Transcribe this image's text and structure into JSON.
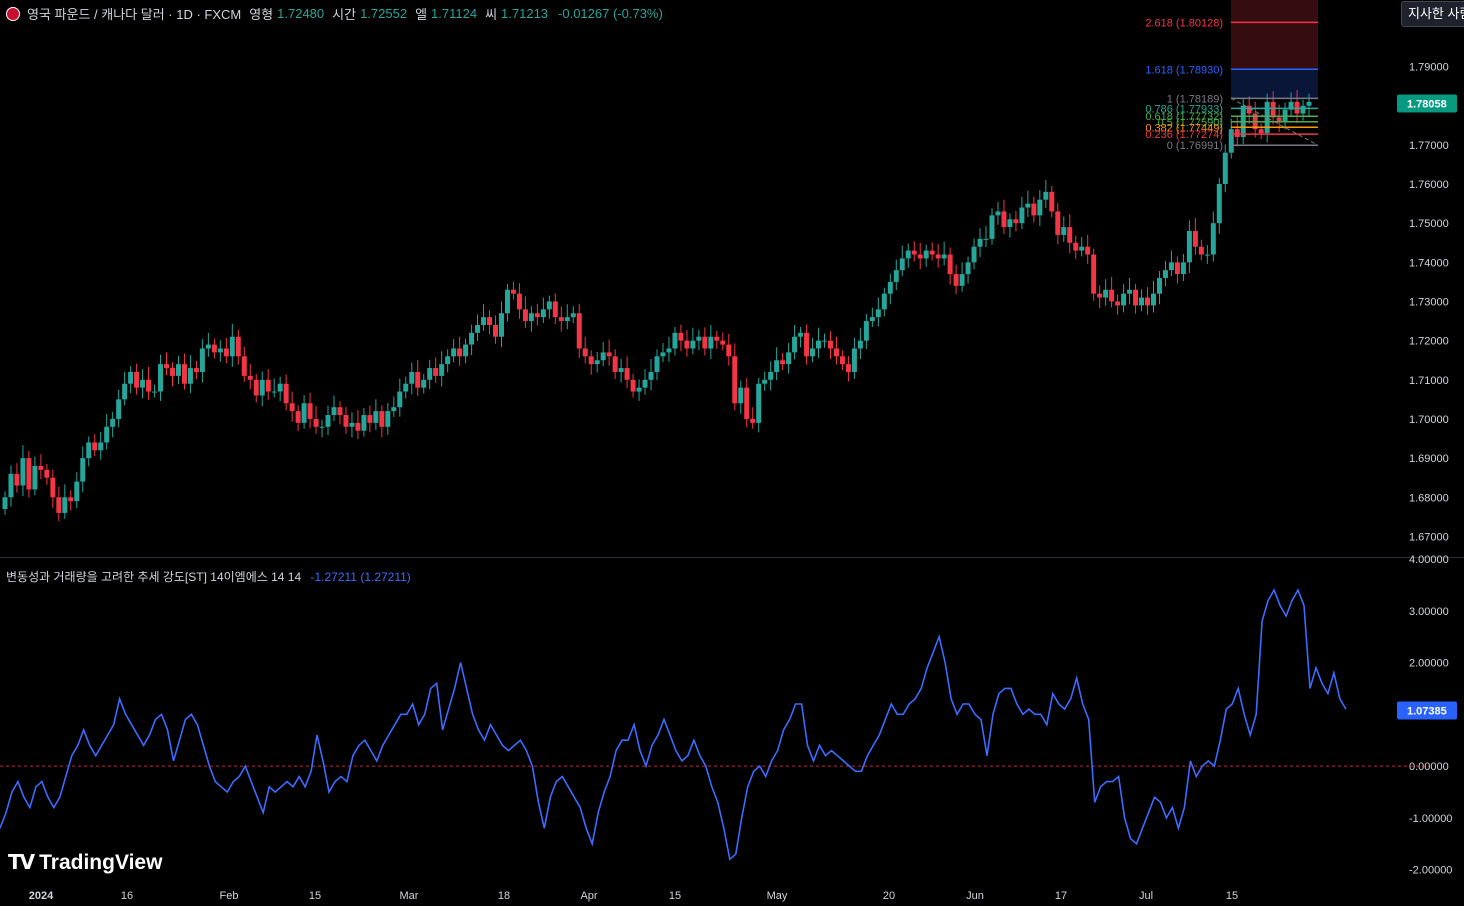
{
  "header": {
    "symbol": "영국 파운드 / 캐나다 달러 · 1D · FXCM",
    "open_label": "영형",
    "open": "1.72480",
    "high_label": "시간",
    "high": "1.72552",
    "low_label": "엘",
    "low": "1.71124",
    "close_label": "씨",
    "close": "1.71213",
    "change": "-0.01267 (-0.73%)"
  },
  "indicator": {
    "title": "변동성과 거래량을 고려한 추세 강도[ST] 14이엠에스 14 14",
    "value_text": "-1.27211 (1.27211)"
  },
  "top_button": "지사한 사람",
  "logo": "TradingView",
  "chart_data": [
    {
      "type": "candlestick",
      "price_ylim": [
        1.665,
        1.807
      ],
      "y_ticks": [
        "1.67000",
        "1.68000",
        "1.69000",
        "1.70000",
        "1.71000",
        "1.72000",
        "1.73000",
        "1.74000",
        "1.75000",
        "1.76000",
        "1.77000",
        "1.78000",
        "1.79000"
      ],
      "last_price": "1.78058",
      "x_ticks": [
        "2024",
        "16",
        "Feb",
        "15",
        "Mar",
        "18",
        "Apr",
        "15",
        "May",
        "20",
        "Jun",
        "17",
        "Jul",
        "15"
      ],
      "closes": [
        1.68,
        1.686,
        1.683,
        1.69,
        1.682,
        1.688,
        1.687,
        1.685,
        1.68,
        1.676,
        1.68,
        1.679,
        1.684,
        1.69,
        1.694,
        1.692,
        1.694,
        1.698,
        1.7,
        1.705,
        1.709,
        1.712,
        1.708,
        1.71,
        1.707,
        1.707,
        1.714,
        1.713,
        1.711,
        1.714,
        1.709,
        1.713,
        1.712,
        1.718,
        1.719,
        1.717,
        1.718,
        1.716,
        1.721,
        1.716,
        1.711,
        1.71,
        1.706,
        1.71,
        1.707,
        1.707,
        1.709,
        1.704,
        1.702,
        1.699,
        1.704,
        1.7,
        1.698,
        1.698,
        1.701,
        1.703,
        1.701,
        1.698,
        1.699,
        1.697,
        1.701,
        1.699,
        1.702,
        1.698,
        1.702,
        1.703,
        1.707,
        1.709,
        1.712,
        1.708,
        1.71,
        1.713,
        1.711,
        1.714,
        1.716,
        1.718,
        1.716,
        1.719,
        1.722,
        1.724,
        1.726,
        1.724,
        1.721,
        1.727,
        1.733,
        1.732,
        1.728,
        1.725,
        1.727,
        1.726,
        1.728,
        1.73,
        1.726,
        1.725,
        1.726,
        1.727,
        1.718,
        1.716,
        1.714,
        1.715,
        1.717,
        1.716,
        1.712,
        1.713,
        1.71,
        1.707,
        1.708,
        1.71,
        1.712,
        1.716,
        1.717,
        1.718,
        1.722,
        1.72,
        1.718,
        1.72,
        1.721,
        1.718,
        1.721,
        1.72,
        1.719,
        1.716,
        1.704,
        1.708,
        1.7,
        1.699,
        1.709,
        1.71,
        1.712,
        1.715,
        1.714,
        1.717,
        1.721,
        1.722,
        1.716,
        1.718,
        1.72,
        1.72,
        1.718,
        1.716,
        1.714,
        1.712,
        1.718,
        1.72,
        1.725,
        1.726,
        1.728,
        1.732,
        1.735,
        1.738,
        1.741,
        1.743,
        1.742,
        1.741,
        1.743,
        1.742,
        1.741,
        1.742,
        1.737,
        1.734,
        1.737,
        1.74,
        1.744,
        1.746,
        1.746,
        1.752,
        1.753,
        1.749,
        1.751,
        1.75,
        1.754,
        1.755,
        1.752,
        1.756,
        1.758,
        1.753,
        1.747,
        1.749,
        1.745,
        1.743,
        1.744,
        1.742,
        1.732,
        1.731,
        1.733,
        1.73,
        1.729,
        1.732,
        1.733,
        1.729,
        1.731,
        1.729,
        1.732,
        1.736,
        1.738,
        1.74,
        1.737,
        1.74,
        1.748,
        1.744,
        1.742,
        1.742,
        1.75,
        1.76,
        1.768,
        1.774,
        1.772,
        1.78,
        1.778,
        1.774,
        1.773,
        1.781,
        1.777,
        1.776,
        1.779,
        1.781,
        1.778,
        1.78,
        1.781
      ]
    },
    {
      "type": "line",
      "ylim": [
        -2.2,
        4.0
      ],
      "y_ticks": [
        "4.00000",
        "3.00000",
        "2.00000",
        "1.00000",
        "0.00000",
        "-1.00000",
        "-2.00000"
      ],
      "last_value": "1.07385",
      "zero_line": 0,
      "values": [
        -1.2,
        -0.9,
        -0.5,
        -0.3,
        -0.6,
        -0.8,
        -0.4,
        -0.3,
        -0.6,
        -0.8,
        -0.6,
        -0.2,
        0.2,
        0.4,
        0.7,
        0.4,
        0.2,
        0.4,
        0.6,
        0.8,
        1.3,
        1.0,
        0.8,
        0.6,
        0.4,
        0.6,
        0.9,
        1.0,
        0.7,
        0.1,
        0.5,
        0.9,
        1.0,
        0.8,
        0.4,
        0.0,
        -0.3,
        -0.4,
        -0.5,
        -0.3,
        -0.2,
        0.0,
        -0.3,
        -0.6,
        -0.9,
        -0.4,
        -0.5,
        -0.4,
        -0.3,
        -0.4,
        -0.2,
        -0.4,
        -0.1,
        0.6,
        0.1,
        -0.5,
        -0.3,
        -0.2,
        -0.3,
        0.2,
        0.4,
        0.5,
        0.3,
        0.1,
        0.4,
        0.6,
        0.8,
        1.0,
        1.0,
        1.2,
        0.8,
        1.0,
        1.5,
        1.6,
        0.7,
        1.1,
        1.5,
        2.0,
        1.5,
        1.0,
        0.7,
        0.5,
        0.8,
        0.6,
        0.4,
        0.3,
        0.4,
        0.5,
        0.3,
        0.0,
        -0.7,
        -1.2,
        -0.6,
        -0.3,
        -0.2,
        -0.4,
        -0.6,
        -0.8,
        -1.2,
        -1.5,
        -0.9,
        -0.5,
        -0.2,
        0.3,
        0.5,
        0.5,
        0.8,
        0.3,
        0.0,
        0.4,
        0.6,
        0.9,
        0.6,
        0.3,
        0.1,
        0.2,
        0.5,
        0.2,
        0.0,
        -0.4,
        -0.7,
        -1.2,
        -1.8,
        -1.7,
        -1.0,
        -0.4,
        -0.1,
        0.0,
        -0.2,
        0.1,
        0.3,
        0.7,
        0.9,
        1.2,
        1.2,
        0.4,
        0.1,
        0.4,
        0.2,
        0.3,
        0.2,
        0.1,
        0.0,
        -0.1,
        -0.1,
        0.2,
        0.4,
        0.6,
        0.9,
        1.2,
        1.0,
        1.0,
        1.2,
        1.3,
        1.5,
        1.9,
        2.2,
        2.5,
        2.0,
        1.3,
        1.0,
        1.2,
        1.2,
        1.0,
        0.9,
        0.2,
        1.0,
        1.4,
        1.5,
        1.5,
        1.2,
        1.0,
        1.1,
        1.0,
        1.0,
        0.8,
        1.4,
        1.2,
        1.1,
        1.3,
        1.7,
        1.2,
        0.9,
        -0.7,
        -0.4,
        -0.3,
        -0.3,
        -0.2,
        -1.0,
        -1.4,
        -1.5,
        -1.2,
        -0.9,
        -0.6,
        -0.7,
        -1.0,
        -0.8,
        -1.2,
        -0.8,
        0.1,
        -0.2,
        0.0,
        0.1,
        0.0,
        0.5,
        1.1,
        1.2,
        1.5,
        1.0,
        0.6,
        1.0,
        2.8,
        3.2,
        3.4,
        3.1,
        2.9,
        3.2,
        3.4,
        3.1,
        1.5,
        1.9,
        1.6,
        1.4,
        1.8,
        1.3,
        1.1
      ]
    }
  ],
  "fibonacci": {
    "levels": [
      {
        "label": "2.618 (1.80128)",
        "color": "#f23645"
      },
      {
        "label": "1.618 (1.78930)",
        "color": "#2962ff"
      },
      {
        "label": "1 (1.78189)",
        "color": "#787b86"
      },
      {
        "label": "0.786 (1.77933)",
        "color": "#22ab94"
      },
      {
        "label": "0.618 (1.77732)",
        "color": "#4caf50"
      },
      {
        "label": "0.5 (1.77590)",
        "color": "#4caf50"
      },
      {
        "label": "0.382 (1.77449)",
        "color": "#ff9800"
      },
      {
        "label": "0.236 (1.77274)",
        "color": "#f23645"
      },
      {
        "label": "0 (1.76991)",
        "color": "#787b86"
      }
    ]
  },
  "colors": {
    "up": "#26a69a",
    "down": "#f23645",
    "line": "#3d6bff",
    "axis_bg": "#000000",
    "grid": "#1a1d24"
  }
}
